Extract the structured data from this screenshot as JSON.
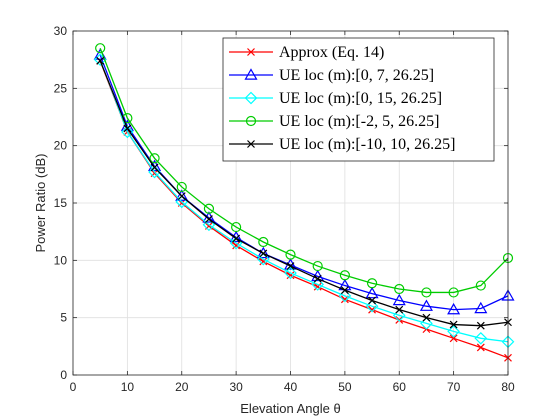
{
  "chart_data": {
    "type": "line",
    "xlabel": "Elevation Angle θ",
    "ylabel": "Power Ratio (dB)",
    "xlim": [
      0,
      80
    ],
    "ylim": [
      0,
      30
    ],
    "xticks": [
      0,
      10,
      20,
      30,
      40,
      50,
      60,
      70,
      80
    ],
    "yticks": [
      0,
      5,
      10,
      15,
      20,
      25,
      30
    ],
    "grid": true,
    "legend_position": "top-right",
    "x": [
      5,
      10,
      15,
      20,
      25,
      30,
      35,
      40,
      45,
      50,
      55,
      60,
      65,
      70,
      75,
      80
    ],
    "series": [
      {
        "name": "Approx (Eq. 14)",
        "color": "#ff0000",
        "marker": "x",
        "values": [
          27.4,
          21.2,
          17.6,
          15.0,
          13.0,
          11.3,
          9.9,
          8.7,
          7.7,
          6.6,
          5.7,
          4.8,
          4.0,
          3.2,
          2.4,
          1.5
        ]
      },
      {
        "name": "UE loc (m):[0, 7, 26.25]",
        "color": "#0000ff",
        "marker": "triangle",
        "values": [
          27.9,
          21.7,
          18.2,
          15.6,
          13.7,
          12.0,
          10.6,
          9.6,
          8.6,
          7.8,
          7.1,
          6.5,
          6.0,
          5.7,
          5.8,
          6.9
        ]
      },
      {
        "name": "UE loc (m):[0, 15, 26.25]",
        "color": "#00ffff",
        "marker": "diamond",
        "values": [
          27.5,
          21.2,
          17.7,
          15.1,
          13.1,
          11.5,
          10.1,
          8.9,
          7.9,
          6.9,
          6.0,
          5.2,
          4.5,
          3.8,
          3.2,
          2.9
        ]
      },
      {
        "name": "UE loc (m):[-2, 5, 26.25]",
        "color": "#00cc00",
        "marker": "circle",
        "values": [
          28.5,
          22.4,
          18.9,
          16.4,
          14.5,
          12.9,
          11.6,
          10.5,
          9.5,
          8.7,
          8.0,
          7.5,
          7.2,
          7.2,
          7.8,
          10.2
        ]
      },
      {
        "name": "UE loc (m):[-10, 10, 26.25]",
        "color": "#000000",
        "marker": "x",
        "values": [
          27.4,
          21.5,
          18.1,
          15.6,
          13.6,
          11.9,
          10.6,
          9.5,
          8.4,
          7.4,
          6.5,
          5.7,
          5.0,
          4.4,
          4.3,
          4.6
        ]
      }
    ]
  }
}
